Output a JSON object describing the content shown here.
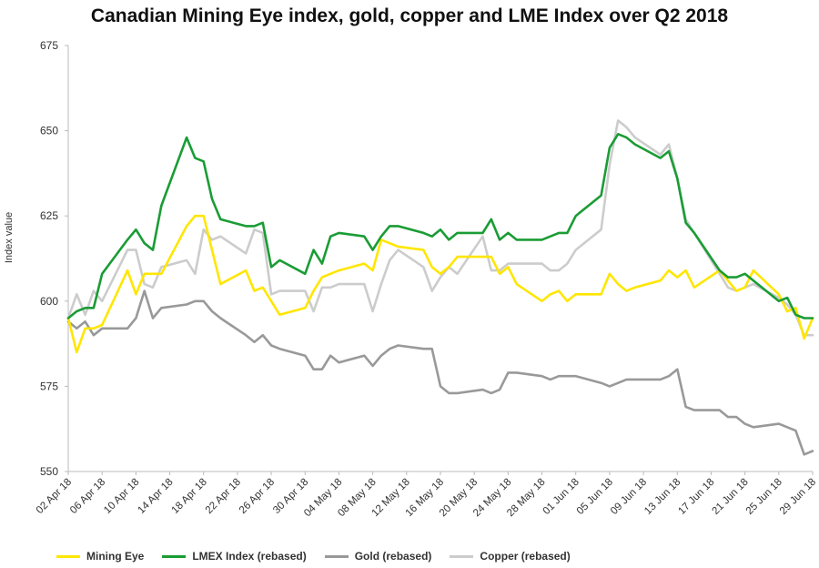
{
  "chart_data": {
    "type": "line",
    "title": "Canadian Mining Eye index, gold, copper and LME Index over Q2 2018",
    "xlabel": "",
    "ylabel": "Index value",
    "ylim": [
      550,
      675
    ],
    "yticks": [
      550,
      575,
      600,
      625,
      650,
      675
    ],
    "x": [
      "02 Apr 18",
      "03 Apr 18",
      "04 Apr 18",
      "05 Apr 18",
      "06 Apr 18",
      "09 Apr 18",
      "10 Apr 18",
      "11 Apr 18",
      "12 Apr 18",
      "13 Apr 18",
      "16 Apr 18",
      "17 Apr 18",
      "18 Apr 18",
      "19 Apr 18",
      "20 Apr 18",
      "23 Apr 18",
      "24 Apr 18",
      "25 Apr 18",
      "26 Apr 18",
      "27 Apr 18",
      "30 Apr 18",
      "01 May 18",
      "02 May 18",
      "03 May 18",
      "04 May 18",
      "07 May 18",
      "08 May 18",
      "09 May 18",
      "10 May 18",
      "11 May 18",
      "14 May 18",
      "15 May 18",
      "16 May 18",
      "17 May 18",
      "18 May 18",
      "21 May 18",
      "22 May 18",
      "23 May 18",
      "24 May 18",
      "25 May 18",
      "28 May 18",
      "29 May 18",
      "30 May 18",
      "31 May 18",
      "01 Jun 18",
      "04 Jun 18",
      "05 Jun 18",
      "06 Jun 18",
      "07 Jun 18",
      "08 Jun 18",
      "11 Jun 18",
      "12 Jun 18",
      "13 Jun 18",
      "14 Jun 18",
      "15 Jun 18",
      "18 Jun 18",
      "19 Jun 18",
      "20 Jun 18",
      "21 Jun 18",
      "22 Jun 18",
      "25 Jun 18",
      "26 Jun 18",
      "27 Jun 18",
      "28 Jun 18",
      "29 Jun 18"
    ],
    "xtick_labels": [
      "02 Apr 18",
      "06 Apr 18",
      "10 Apr 18",
      "14 Apr 18",
      "18 Apr 18",
      "22 Apr 18",
      "26 Apr 18",
      "30 Apr 18",
      "04 May 18",
      "08 May 18",
      "12 May 18",
      "16 May 18",
      "20 May 18",
      "24 May 18",
      "28 May 18",
      "01 Jun 18",
      "05 Jun 18",
      "09 Jun 18",
      "13 Jun 18",
      "17 Jun 18",
      "21 Jun 18",
      "25 Jun 18",
      "29 Jun 18"
    ],
    "x_range": [
      "02 Apr 18",
      "29 Jun 18"
    ],
    "grid": false,
    "legend_position": "bottom",
    "series": [
      {
        "name": "Mining Eye",
        "color": "#ffe600",
        "values": [
          595,
          585,
          592,
          592,
          593,
          609,
          602,
          608,
          608,
          608,
          622,
          625,
          625,
          615,
          605,
          609,
          603,
          604,
          600,
          596,
          598,
          603,
          607,
          608,
          609,
          611,
          609,
          618,
          617,
          616,
          615,
          610,
          608,
          610,
          613,
          613,
          613,
          608,
          610,
          605,
          600,
          602,
          603,
          600,
          602,
          602,
          608,
          605,
          603,
          604,
          606,
          609,
          607,
          609,
          604,
          609,
          606,
          603,
          604,
          609,
          602,
          597,
          598,
          589,
          595
        ]
      },
      {
        "name": "LMEX Index (rebased)",
        "color": "#1a9c35",
        "values": [
          595,
          597,
          598,
          598,
          608,
          618,
          621,
          617,
          615,
          628,
          648,
          642,
          641,
          630,
          624,
          622,
          622,
          623,
          610,
          612,
          608,
          615,
          611,
          619,
          620,
          619,
          615,
          619,
          622,
          622,
          620,
          619,
          621,
          618,
          620,
          620,
          624,
          618,
          620,
          618,
          618,
          619,
          620,
          620,
          625,
          631,
          645,
          649,
          648,
          646,
          642,
          644,
          636,
          623,
          620,
          609,
          607,
          607,
          608,
          606,
          600,
          601,
          596,
          595,
          595
        ]
      },
      {
        "name": "Gold (rebased)",
        "color": "#999999",
        "values": [
          594,
          592,
          594,
          590,
          592,
          592,
          595,
          603,
          595,
          598,
          599,
          600,
          600,
          597,
          595,
          590,
          588,
          590,
          587,
          586,
          584,
          580,
          580,
          584,
          582,
          584,
          581,
          584,
          586,
          587,
          586,
          586,
          575,
          573,
          573,
          574,
          573,
          574,
          579,
          579,
          578,
          577,
          578,
          578,
          578,
          576,
          575,
          576,
          577,
          577,
          577,
          578,
          580,
          569,
          568,
          568,
          566,
          566,
          564,
          563,
          564,
          563,
          562,
          555,
          556
        ]
      },
      {
        "name": "Copper (rebased)",
        "color": "#cccccc",
        "values": [
          595,
          602,
          596,
          603,
          600,
          615,
          615,
          605,
          604,
          610,
          612,
          608,
          621,
          618,
          619,
          614,
          621,
          620,
          602,
          603,
          603,
          597,
          604,
          604,
          605,
          605,
          597,
          605,
          612,
          615,
          610,
          603,
          607,
          610,
          608,
          619,
          609,
          609,
          611,
          611,
          611,
          609,
          609,
          611,
          615,
          621,
          640,
          653,
          651,
          648,
          643,
          646,
          636,
          624,
          620,
          608,
          604,
          603,
          604,
          605,
          601,
          599,
          596,
          590,
          590
        ]
      }
    ]
  }
}
